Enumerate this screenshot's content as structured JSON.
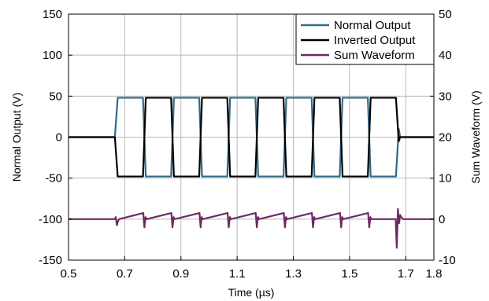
{
  "chart_data": {
    "type": "line",
    "xlabel": "Time (µs)",
    "ylabel_left": "Normal Output (V)",
    "ylabel_right": "Sum Waveform (V)",
    "xlim": [
      0.5,
      1.8
    ],
    "ylim_left": [
      -150,
      150
    ],
    "ylim_right": [
      -10,
      50
    ],
    "x_ticks": [
      "0.5",
      "0.7",
      "0.9",
      "1.1",
      "1.3",
      "1.5",
      "1.7",
      "1.8"
    ],
    "y_ticks_left": [
      "150",
      "100",
      "50",
      "0",
      "-50",
      "-100",
      "-150"
    ],
    "y_ticks_right": [
      "50",
      "40",
      "30",
      "20",
      "10",
      "0",
      "-10"
    ],
    "x_tick_values": [
      0.5,
      0.7,
      0.9,
      1.1,
      1.3,
      1.5,
      1.7,
      1.8
    ],
    "y_tick_values_left": [
      150,
      100,
      50,
      0,
      -50,
      -100,
      -150
    ],
    "y_tick_values_right": [
      50,
      40,
      30,
      20,
      10,
      0,
      -10
    ],
    "grid": true,
    "legend_position": "top-right",
    "series": [
      {
        "name": "Normal Output",
        "axis": "left",
        "color": "#2e6b8a",
        "x": [
          0.5,
          0.665,
          0.675,
          0.765,
          0.775,
          0.865,
          0.875,
          0.965,
          0.975,
          1.065,
          1.075,
          1.165,
          1.175,
          1.265,
          1.275,
          1.365,
          1.375,
          1.465,
          1.475,
          1.565,
          1.575,
          1.665,
          1.675,
          1.68,
          1.8
        ],
        "y": [
          0,
          0,
          48,
          48,
          -48,
          -48,
          48,
          48,
          -48,
          -48,
          48,
          48,
          -48,
          -48,
          48,
          48,
          -48,
          -48,
          48,
          48,
          -48,
          -48,
          10,
          0,
          0
        ]
      },
      {
        "name": "Inverted Output",
        "axis": "left",
        "color": "#000000",
        "x": [
          0.5,
          0.665,
          0.675,
          0.765,
          0.775,
          0.865,
          0.875,
          0.965,
          0.975,
          1.065,
          1.075,
          1.165,
          1.175,
          1.265,
          1.275,
          1.365,
          1.375,
          1.465,
          1.475,
          1.565,
          1.575,
          1.665,
          1.675,
          1.68,
          1.8
        ],
        "y": [
          0,
          0,
          -48,
          -48,
          48,
          48,
          -48,
          -48,
          48,
          48,
          -48,
          -48,
          48,
          48,
          -48,
          -48,
          48,
          48,
          -48,
          -48,
          48,
          48,
          -5,
          0,
          0
        ]
      },
      {
        "name": "Sum Waveform",
        "axis": "right",
        "color": "#6e2a63",
        "x": [
          0.5,
          0.665,
          0.668,
          0.672,
          0.676,
          0.68,
          0.766,
          0.77,
          0.774,
          0.778,
          0.866,
          0.87,
          0.874,
          0.878,
          0.966,
          0.97,
          0.974,
          0.978,
          1.066,
          1.07,
          1.074,
          1.078,
          1.166,
          1.17,
          1.174,
          1.178,
          1.266,
          1.27,
          1.274,
          1.278,
          1.366,
          1.37,
          1.374,
          1.378,
          1.466,
          1.47,
          1.474,
          1.478,
          1.566,
          1.57,
          1.574,
          1.578,
          1.664,
          1.668,
          1.672,
          1.676,
          1.68,
          1.684,
          1.69,
          1.8
        ],
        "y": [
          0,
          0,
          0.5,
          -1.5,
          -0.5,
          0,
          1.5,
          -2,
          0.5,
          0,
          1.5,
          -2,
          0.5,
          0,
          1.5,
          -2,
          0.5,
          0,
          1.5,
          -2,
          0.5,
          0,
          1.5,
          -2,
          0.5,
          0,
          1.5,
          -2,
          0.5,
          0,
          1.5,
          -2,
          0.5,
          0,
          1.5,
          -2,
          0.5,
          0,
          1.5,
          -2,
          0.5,
          0,
          0,
          -7,
          2.5,
          -1,
          1,
          0.5,
          0,
          0
        ]
      }
    ]
  }
}
